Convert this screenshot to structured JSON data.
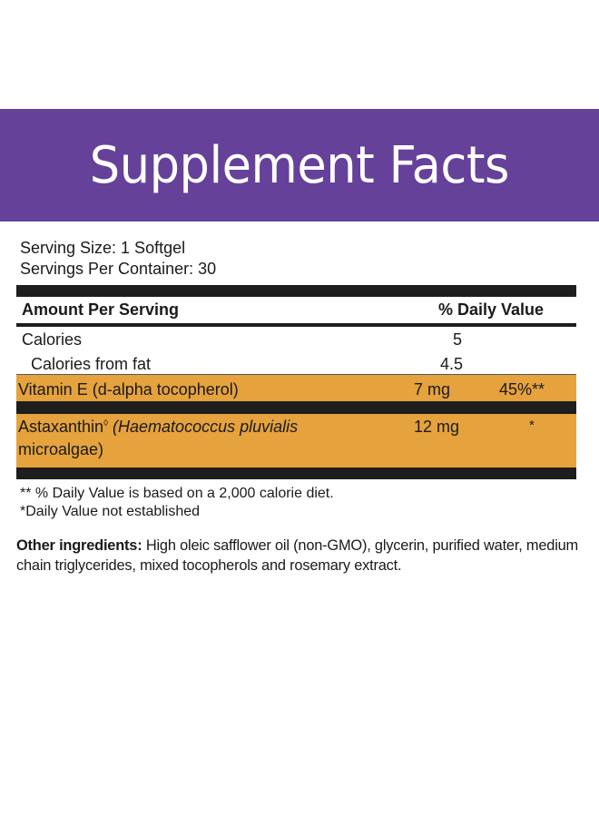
{
  "banner": {
    "title": "Supplement Facts",
    "color": "#65419a"
  },
  "serving": {
    "size": "Serving Size: 1 Softgel",
    "per_container": "Servings Per Container: 30"
  },
  "table": {
    "header": {
      "amount": "Amount Per Serving",
      "dv": "% Daily Value"
    },
    "rows": [
      {
        "name": "Calories",
        "amount": "5",
        "dv": ""
      },
      {
        "name": "Calories from fat",
        "amount": "4.5",
        "dv": ""
      },
      {
        "name": "Vitamin E (d-alpha tocopherol)",
        "amount": "7 mg",
        "dv": "45%**"
      },
      {
        "name": "Astaxanthin",
        "name_mark": "◊",
        "name_source": "(Haematococcus pluvialis",
        "name_line2": "microalgae)",
        "amount": "12 mg",
        "dv": "*"
      }
    ],
    "highlight_color": "#e5a23d"
  },
  "footnotes": [
    "** % Daily Value is based on a 2,000 calorie diet.",
    "*Daily Value not established"
  ],
  "other_ingredients": {
    "label": "Other ingredients:",
    "text": " High oleic safflower oil (non-GMO), glycerin, purified water, medium chain triglycerides, mixed tocopherols and rosemary extract."
  }
}
